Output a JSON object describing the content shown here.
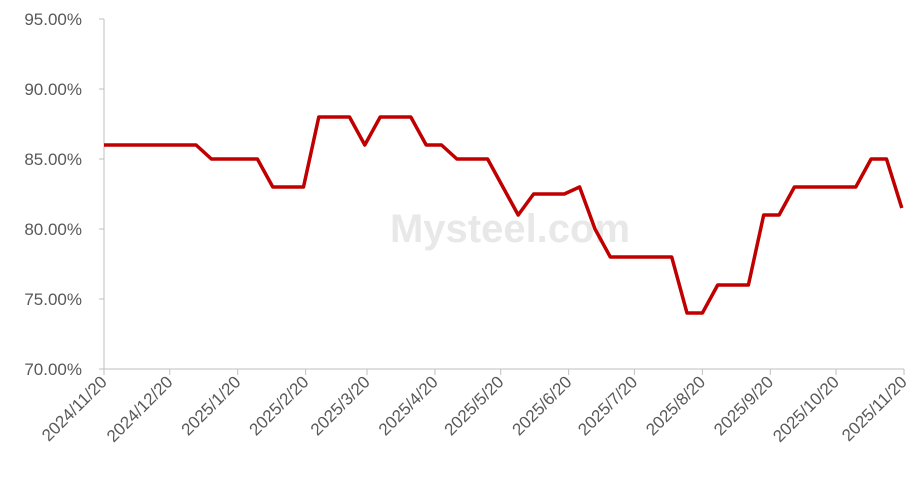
{
  "chart_data": {
    "type": "line",
    "watermark": "Mysteel.com",
    "x": [
      "2024/11/20",
      "2024/11/27",
      "2024/12/4",
      "2024/12/11",
      "2024/12/18",
      "2024/12/25",
      "2025/1/1",
      "2025/1/8",
      "2025/1/15",
      "2025/1/22",
      "2025/1/29",
      "2025/2/5",
      "2025/2/12",
      "2025/2/19",
      "2025/2/26",
      "2025/3/5",
      "2025/3/12",
      "2025/3/19",
      "2025/3/26",
      "2025/4/2",
      "2025/4/9",
      "2025/4/16",
      "2025/4/23",
      "2025/4/30",
      "2025/5/7",
      "2025/5/14",
      "2025/5/21",
      "2025/5/28",
      "2025/6/4",
      "2025/6/11",
      "2025/6/18",
      "2025/6/25",
      "2025/7/2",
      "2025/7/9",
      "2025/7/16",
      "2025/7/23",
      "2025/7/30",
      "2025/8/6",
      "2025/8/13",
      "2025/8/20",
      "2025/8/27",
      "2025/9/3",
      "2025/9/10",
      "2025/9/17",
      "2025/9/24",
      "2025/10/1",
      "2025/10/8",
      "2025/10/15",
      "2025/10/22",
      "2025/10/29",
      "2025/11/5",
      "2025/11/12",
      "2025/11/19"
    ],
    "series": [
      {
        "color": "#c00000",
        "values": [
          86,
          86,
          86,
          86,
          86,
          86,
          86,
          85,
          85,
          85,
          85,
          83,
          83,
          83,
          88,
          88,
          88,
          86,
          88,
          88,
          88,
          86,
          86,
          85,
          85,
          85,
          83,
          81,
          82.5,
          82.5,
          82.5,
          83,
          80,
          78,
          78,
          78,
          78,
          78,
          74,
          74,
          76,
          76,
          76,
          81,
          81,
          83,
          83,
          83,
          83,
          83,
          85,
          85,
          81.5
        ]
      }
    ],
    "xlim": [
      "2024/11/20",
      "2025/11/20"
    ],
    "xticks": [
      "2024/11/20",
      "2024/12/20",
      "2025/1/20",
      "2025/2/20",
      "2025/3/20",
      "2025/4/20",
      "2025/5/20",
      "2025/6/20",
      "2025/7/20",
      "2025/8/20",
      "2025/9/20",
      "2025/10/20",
      "2025/11/20"
    ],
    "ylim": [
      70,
      95
    ],
    "yticks": [
      {
        "value": 70,
        "label": "70.00%"
      },
      {
        "value": 75,
        "label": "75.00%"
      },
      {
        "value": 80,
        "label": "80.00%"
      },
      {
        "value": 85,
        "label": "85.00%"
      },
      {
        "value": 90,
        "label": "90.00%"
      },
      {
        "value": 95,
        "label": "95.00%"
      }
    ],
    "grid": false
  }
}
